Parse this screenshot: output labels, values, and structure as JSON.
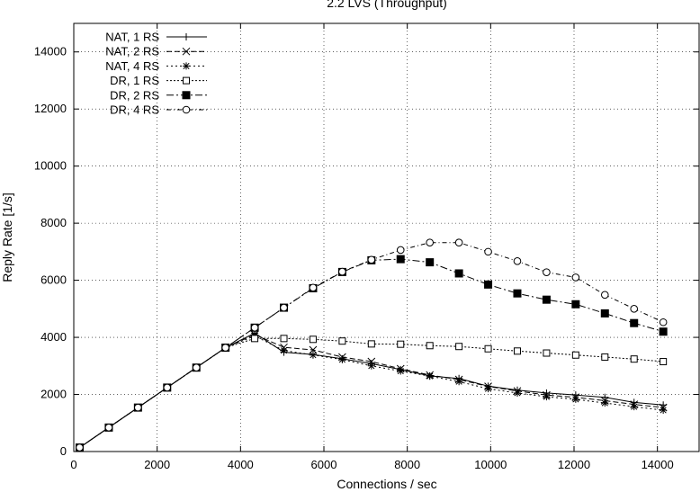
{
  "chart_data": {
    "type": "line",
    "title": "2.2 LVS (Throughput)",
    "xlabel": "Connections / sec",
    "ylabel": "Reply Rate [1/s]",
    "xlim": [
      0,
      15000
    ],
    "ylim": [
      0,
      15000
    ],
    "xticks": [
      0,
      2000,
      4000,
      6000,
      8000,
      10000,
      12000,
      14000
    ],
    "yticks": [
      0,
      2000,
      4000,
      6000,
      8000,
      10000,
      12000,
      14000
    ],
    "grid": true,
    "legend_position": "top-left",
    "series": [
      {
        "name": "NAT, 1 RS",
        "marker": "plus",
        "dash": "none",
        "x": [
          140,
          840,
          1540,
          2240,
          2940,
          3640,
          4340,
          5040,
          5740,
          6440,
          7140,
          7840,
          8540,
          9240,
          9940,
          10640,
          11340,
          12040,
          12740,
          13440,
          14140
        ],
        "y": [
          140,
          840,
          1540,
          2240,
          2940,
          3640,
          4150,
          3480,
          3400,
          3250,
          3080,
          2870,
          2650,
          2560,
          2290,
          2150,
          2050,
          1980,
          1900,
          1720,
          1630
        ]
      },
      {
        "name": "NAT, 2 RS",
        "marker": "x",
        "dash": "6,3",
        "x": [
          140,
          840,
          1540,
          2240,
          2940,
          3640,
          4340,
          5040,
          5740,
          6440,
          7140,
          7840,
          8540,
          9240,
          9940,
          10640,
          11340,
          12040,
          12740,
          13440,
          14140
        ],
        "y": [
          140,
          840,
          1540,
          2240,
          2940,
          3640,
          4100,
          3650,
          3560,
          3310,
          3150,
          2900,
          2680,
          2520,
          2280,
          2120,
          1980,
          1900,
          1780,
          1650,
          1540
        ]
      },
      {
        "name": "NAT, 4 RS",
        "marker": "star",
        "dash": "2,3",
        "x": [
          140,
          840,
          1540,
          2240,
          2940,
          3640,
          4340,
          5040,
          5740,
          6440,
          7140,
          7840,
          8540,
          9240,
          9940,
          10640,
          11340,
          12040,
          12740,
          13440,
          14140
        ],
        "y": [
          140,
          840,
          1540,
          2240,
          2940,
          3640,
          4050,
          3540,
          3380,
          3220,
          3000,
          2820,
          2640,
          2450,
          2200,
          2050,
          1920,
          1830,
          1700,
          1570,
          1450
        ]
      },
      {
        "name": "DR, 1 RS",
        "marker": "square-open",
        "dash": "2,2",
        "x": [
          140,
          840,
          1540,
          2240,
          2940,
          3640,
          4340,
          5040,
          5740,
          6440,
          7140,
          7840,
          8540,
          9240,
          9940,
          10640,
          11340,
          12040,
          12740,
          13440,
          14140
        ],
        "y": [
          140,
          840,
          1540,
          2240,
          2940,
          3640,
          3960,
          3960,
          3930,
          3870,
          3770,
          3760,
          3710,
          3680,
          3600,
          3520,
          3450,
          3380,
          3310,
          3240,
          3150
        ]
      },
      {
        "name": "DR, 2 RS",
        "marker": "square-filled",
        "dash": "8,3,2,3",
        "x": [
          140,
          840,
          1540,
          2240,
          2940,
          3640,
          4340,
          5040,
          5740,
          6440,
          7140,
          7840,
          8540,
          9240,
          9940,
          10640,
          11340,
          12040,
          12740,
          13440,
          14140
        ],
        "y": [
          140,
          840,
          1540,
          2240,
          2940,
          3640,
          4340,
          5040,
          5720,
          6290,
          6700,
          6740,
          6630,
          6240,
          5850,
          5540,
          5320,
          5160,
          4840,
          4500,
          4200
        ]
      },
      {
        "name": "DR, 4 RS",
        "marker": "circle-open",
        "dash": "5,3,1,3",
        "x": [
          140,
          840,
          1540,
          2240,
          2940,
          3640,
          4340,
          5040,
          5740,
          6440,
          7140,
          7840,
          8540,
          9240,
          9940,
          10640,
          11340,
          12040,
          12740,
          13440,
          14140
        ],
        "y": [
          140,
          840,
          1540,
          2240,
          2940,
          3640,
          4340,
          5040,
          5740,
          6300,
          6720,
          7060,
          7320,
          7320,
          7000,
          6670,
          6280,
          6100,
          5490,
          5000,
          4530
        ]
      }
    ]
  }
}
